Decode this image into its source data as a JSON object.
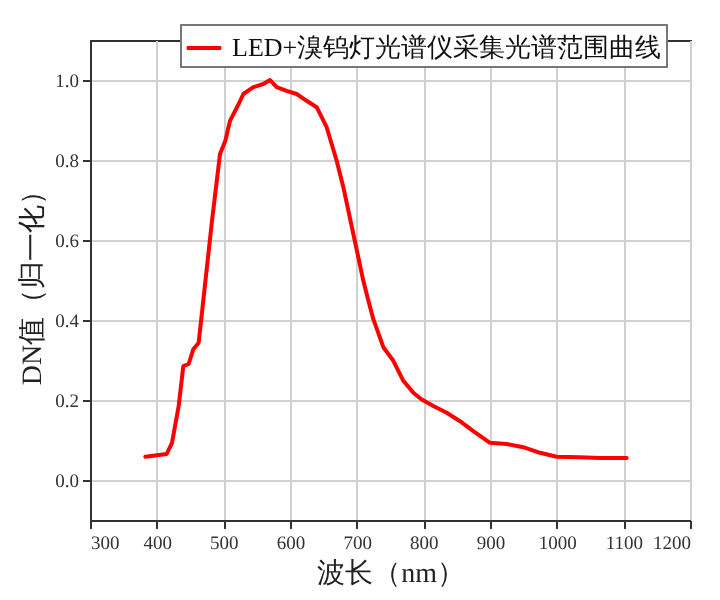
{
  "chart_data": {
    "type": "line",
    "xlabel": "波长（nm）",
    "ylabel": "DN值（归一化）",
    "xlim": [
      300,
      1200
    ],
    "xticks": [
      300,
      400,
      500,
      600,
      700,
      800,
      900,
      1000,
      1100,
      1200
    ],
    "ylim": [
      -0.1,
      1.1
    ],
    "yticks": [
      {
        "value": 0,
        "label": "0.0"
      },
      {
        "value": 0.2,
        "label": "0.2"
      },
      {
        "value": 0.4,
        "label": "0.4"
      },
      {
        "value": 0.6,
        "label": "0.6"
      },
      {
        "value": 0.8,
        "label": "0.8"
      },
      {
        "value": 1,
        "label": "1.0"
      }
    ],
    "grid": true,
    "legend": "top right",
    "series": [
      {
        "name": "LED+溴钨灯光谱仪采集光谱范围曲线",
        "color": "#ff0000",
        "x": [
          383,
          415,
          423,
          433,
          440,
          448,
          455,
          463,
          470,
          483,
          495,
          503,
          510,
          523,
          530,
          545,
          560,
          570,
          580,
          595,
          610,
          625,
          640,
          655,
          670,
          680,
          695,
          710,
          717,
          725,
          740,
          755,
          770,
          785,
          797,
          815,
          835,
          855,
          875,
          900,
          925,
          950,
          975,
          1000,
          1035,
          1065,
          1105
        ],
        "values": [
          0.058,
          0.065,
          0.093,
          0.185,
          0.285,
          0.29,
          0.327,
          0.343,
          0.45,
          0.648,
          0.815,
          0.848,
          0.898,
          0.94,
          0.965,
          0.982,
          0.99,
          1.0,
          0.982,
          0.973,
          0.965,
          0.948,
          0.932,
          0.882,
          0.798,
          0.732,
          0.615,
          0.498,
          0.452,
          0.402,
          0.332,
          0.298,
          0.248,
          0.218,
          0.202,
          0.185,
          0.168,
          0.147,
          0.122,
          0.093,
          0.09,
          0.082,
          0.068,
          0.058,
          0.057,
          0.055,
          0.055
        ]
      }
    ]
  }
}
